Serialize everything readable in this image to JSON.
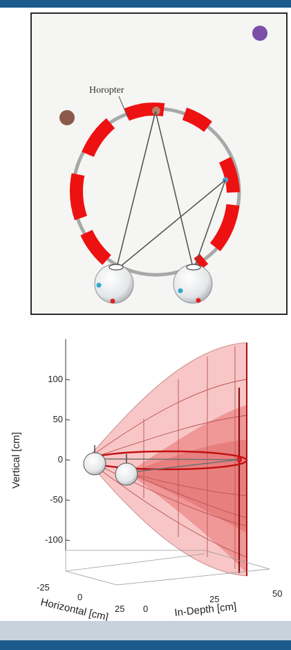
{
  "top_figure": {
    "horopter_label": "Horopter",
    "colors": {
      "frame_bg": "#f5f5f3",
      "circle": "#a8a8a8",
      "segments": "#ee1111",
      "brown_dot": "#8b5a4a",
      "purple_dot": "#7b4fa8",
      "pupil_blue": "#2aa8d0",
      "fovea_red": "#dd2222"
    }
  },
  "bottom_figure": {
    "y_axis_label": "Vertical [cm]",
    "x_axis_label": "Horizontal [cm]",
    "z_axis_label": "In-Depth [cm]",
    "y_ticks": [
      "100",
      "50",
      "0",
      "-50",
      "-100"
    ],
    "x_ticks": [
      "-25",
      "0",
      "25"
    ],
    "z_ticks": [
      "0",
      "25",
      "50"
    ],
    "colors": {
      "surface_light": "#f7b8b8",
      "surface_dark": "#e06060",
      "ring": "#c01010"
    }
  },
  "colors": {
    "header_bar": "#1c5a8c",
    "footer_strip": "#c8d2dc"
  }
}
